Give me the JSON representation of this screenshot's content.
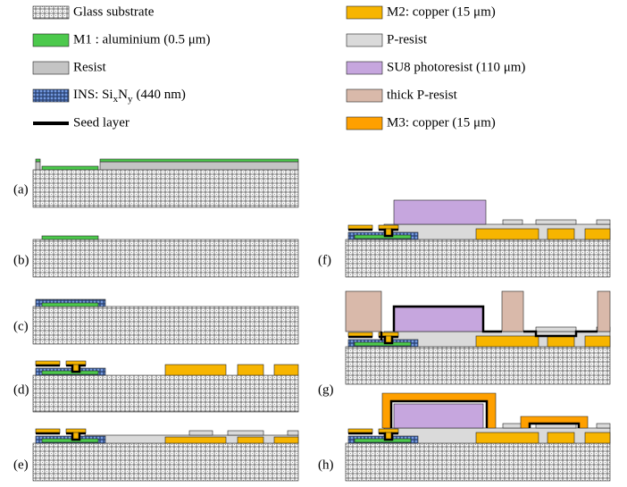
{
  "legend": [
    {
      "label": "Glass substrate"
    },
    {
      "label": "M1 : aluminium (0.5 μm)"
    },
    {
      "label": "Resist"
    },
    {
      "label_parts": [
        "INS: Si",
        "x",
        "N",
        "y",
        "(440 nm)"
      ]
    },
    {
      "label": "Seed layer"
    },
    {
      "label": "M2: copper (15 μm)"
    },
    {
      "label": "P-resist"
    },
    {
      "label": "SU8 photoresist (110 μm)"
    },
    {
      "label": "thick P-resist"
    },
    {
      "label": "M3: copper (15 μm)"
    }
  ],
  "panels": [
    {
      "label": "(a)"
    },
    {
      "label": "(b)"
    },
    {
      "label": "(c)"
    },
    {
      "label": "(d)"
    },
    {
      "label": "(e)"
    },
    {
      "label": "(f)"
    },
    {
      "label": "(g)"
    },
    {
      "label": "(h)"
    }
  ]
}
